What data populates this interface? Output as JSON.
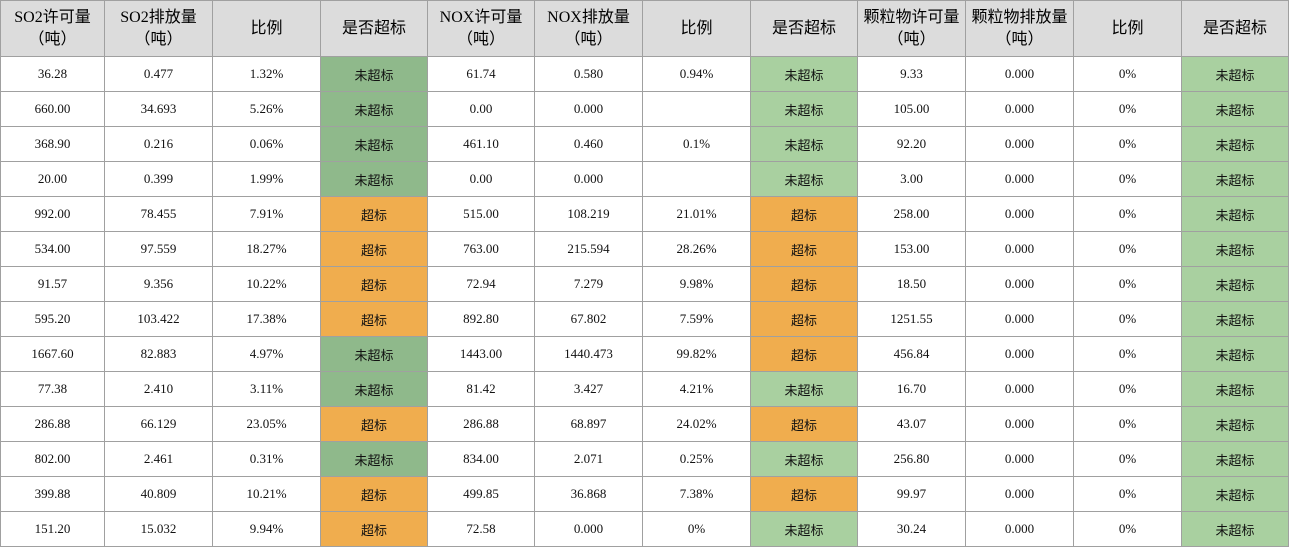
{
  "table": {
    "header": [
      "SO2许可量（吨）",
      "SO2排放量（吨）",
      "比例",
      "是否超标",
      "NOX许可量（吨）",
      "NOX排放量（吨）",
      "比例",
      "是否超标",
      "颗粒物许可量（吨）",
      "颗粒物排放量（吨）",
      "比例",
      "是否超标"
    ],
    "rows": [
      [
        "36.28",
        "0.477",
        "1.32%",
        {
          "text": "未超标",
          "color": "#8fb98b"
        },
        "61.74",
        "0.580",
        "0.94%",
        {
          "text": "未超标",
          "color": "#a9d0a0"
        },
        "9.33",
        "0.000",
        "0%",
        {
          "text": "未超标",
          "color": "#a9d0a0"
        }
      ],
      [
        "660.00",
        "34.693",
        "5.26%",
        {
          "text": "未超标",
          "color": "#8fb98b"
        },
        "0.00",
        "0.000",
        null,
        {
          "text": "未超标",
          "color": "#a9d0a0"
        },
        "105.00",
        "0.000",
        "0%",
        {
          "text": "未超标",
          "color": "#a9d0a0"
        }
      ],
      [
        "368.90",
        "0.216",
        "0.06%",
        {
          "text": "未超标",
          "color": "#8fb98b"
        },
        "461.10",
        "0.460",
        "0.1%",
        {
          "text": "未超标",
          "color": "#a9d0a0"
        },
        "92.20",
        "0.000",
        "0%",
        {
          "text": "未超标",
          "color": "#a9d0a0"
        }
      ],
      [
        "20.00",
        "0.399",
        "1.99%",
        {
          "text": "未超标",
          "color": "#8fb98b"
        },
        "0.00",
        "0.000",
        null,
        {
          "text": "未超标",
          "color": "#a9d0a0"
        },
        "3.00",
        "0.000",
        "0%",
        {
          "text": "未超标",
          "color": "#a9d0a0"
        }
      ],
      [
        "992.00",
        "78.455",
        "7.91%",
        {
          "text": "超标",
          "color": "#f0ad4e"
        },
        "515.00",
        "108.219",
        "21.01%",
        {
          "text": "超标",
          "color": "#f0ad4e"
        },
        "258.00",
        "0.000",
        "0%",
        {
          "text": "未超标",
          "color": "#a9d0a0"
        }
      ],
      [
        "534.00",
        "97.559",
        "18.27%",
        {
          "text": "超标",
          "color": "#f0ad4e"
        },
        "763.00",
        "215.594",
        "28.26%",
        {
          "text": "超标",
          "color": "#f0ad4e"
        },
        "153.00",
        "0.000",
        "0%",
        {
          "text": "未超标",
          "color": "#a9d0a0"
        }
      ],
      [
        "91.57",
        "9.356",
        "10.22%",
        {
          "text": "超标",
          "color": "#f0ad4e"
        },
        "72.94",
        "7.279",
        "9.98%",
        {
          "text": "超标",
          "color": "#f0ad4e"
        },
        "18.50",
        "0.000",
        "0%",
        {
          "text": "未超标",
          "color": "#a9d0a0"
        }
      ],
      [
        "595.20",
        "103.422",
        "17.38%",
        {
          "text": "超标",
          "color": "#f0ad4e"
        },
        "892.80",
        "67.802",
        "7.59%",
        {
          "text": "超标",
          "color": "#f0ad4e"
        },
        "1251.55",
        "0.000",
        "0%",
        {
          "text": "未超标",
          "color": "#a9d0a0"
        }
      ],
      [
        "1667.60",
        "82.883",
        "4.97%",
        {
          "text": "未超标",
          "color": "#8fb98b"
        },
        "1443.00",
        "1440.473",
        "99.82%",
        {
          "text": "超标",
          "color": "#f0ad4e"
        },
        "456.84",
        "0.000",
        "0%",
        {
          "text": "未超标",
          "color": "#a9d0a0"
        }
      ],
      [
        "77.38",
        "2.410",
        "3.11%",
        {
          "text": "未超标",
          "color": "#8fb98b"
        },
        "81.42",
        "3.427",
        "4.21%",
        {
          "text": "未超标",
          "color": "#a9d0a0"
        },
        "16.70",
        "0.000",
        "0%",
        {
          "text": "未超标",
          "color": "#a9d0a0"
        }
      ],
      [
        "286.88",
        "66.129",
        "23.05%",
        {
          "text": "超标",
          "color": "#f0ad4e"
        },
        "286.88",
        "68.897",
        "24.02%",
        {
          "text": "超标",
          "color": "#f0ad4e"
        },
        "43.07",
        "0.000",
        "0%",
        {
          "text": "未超标",
          "color": "#a9d0a0"
        }
      ],
      [
        "802.00",
        "2.461",
        "0.31%",
        {
          "text": "未超标",
          "color": "#8fb98b"
        },
        "834.00",
        "2.071",
        "0.25%",
        {
          "text": "未超标",
          "color": "#a9d0a0"
        },
        "256.80",
        "0.000",
        "0%",
        {
          "text": "未超标",
          "color": "#a9d0a0"
        }
      ],
      [
        "399.88",
        "40.809",
        "10.21%",
        {
          "text": "超标",
          "color": "#f0ad4e"
        },
        "499.85",
        "36.868",
        "7.38%",
        {
          "text": "超标",
          "color": "#f0ad4e"
        },
        "99.97",
        "0.000",
        "0%",
        {
          "text": "未超标",
          "color": "#a9d0a0"
        }
      ],
      [
        "151.20",
        "15.032",
        "9.94%",
        {
          "text": "超标",
          "color": "#f0ad4e"
        },
        "72.58",
        "0.000",
        "0%",
        {
          "text": "未超标",
          "color": "#a9d0a0"
        },
        "30.24",
        "0.000",
        "0%",
        {
          "text": "未超标",
          "color": "#a9d0a0"
        }
      ]
    ]
  }
}
